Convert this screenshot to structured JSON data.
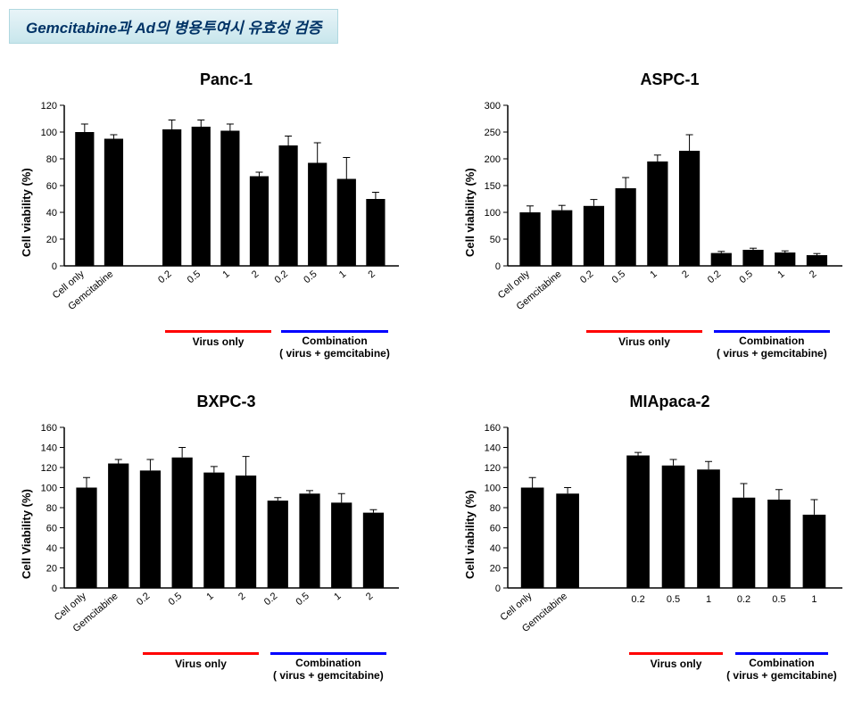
{
  "header": "Gemcitabine과 Ad의 병용투여시 유효성 검증",
  "ylabel_v": "Cell viability (%)",
  "ylabel_V": "Cell Viability (%)",
  "colors": {
    "bar": "#000000",
    "axis": "#000000",
    "virus_line": "#ff0000",
    "combo_line": "#0000ff",
    "bg": "#ffffff"
  },
  "font": {
    "title_pt": 18,
    "axis_pt": 13,
    "tick_pt": 11,
    "group_pt": 12
  },
  "group_label_virus": "Virus only",
  "group_label_combo": "Combination\n( virus + gemcitabine)",
  "panels": [
    {
      "id": "panc1",
      "title": "Panc-1",
      "ylabel_key": "ylabel_v",
      "ylim": [
        0,
        120
      ],
      "ytick_step": 20,
      "has_gap_after_two": true,
      "bars": [
        {
          "label": "Cell only",
          "value": 100,
          "err": 6,
          "rot": true
        },
        {
          "label": "Gemcitabine",
          "value": 95,
          "err": 3,
          "rot": true
        },
        {
          "label": "0.2",
          "value": 102,
          "err": 7,
          "rot": true,
          "group": "virus"
        },
        {
          "label": "0.5",
          "value": 104,
          "err": 5,
          "rot": true,
          "group": "virus"
        },
        {
          "label": "1",
          "value": 101,
          "err": 5,
          "rot": true,
          "group": "virus"
        },
        {
          "label": "2",
          "value": 67,
          "err": 3,
          "rot": true,
          "group": "virus"
        },
        {
          "label": "0.2",
          "value": 90,
          "err": 7,
          "rot": true,
          "group": "combo"
        },
        {
          "label": "0.5",
          "value": 77,
          "err": 15,
          "rot": true,
          "group": "combo"
        },
        {
          "label": "1",
          "value": 65,
          "err": 16,
          "rot": true,
          "group": "combo"
        },
        {
          "label": "2",
          "value": 50,
          "err": 5,
          "rot": true,
          "group": "combo"
        }
      ]
    },
    {
      "id": "aspc1",
      "title": "ASPC-1",
      "ylabel_key": "ylabel_v",
      "ylim": [
        0,
        300
      ],
      "ytick_step": 50,
      "has_gap_after_two": false,
      "bars": [
        {
          "label": "Cell only",
          "value": 100,
          "err": 12,
          "rot": true
        },
        {
          "label": "Gemcitabine",
          "value": 104,
          "err": 9,
          "rot": true
        },
        {
          "label": "0.2",
          "value": 112,
          "err": 12,
          "rot": true,
          "group": "virus"
        },
        {
          "label": "0.5",
          "value": 145,
          "err": 20,
          "rot": true,
          "group": "virus"
        },
        {
          "label": "1",
          "value": 195,
          "err": 12,
          "rot": true,
          "group": "virus"
        },
        {
          "label": "2",
          "value": 215,
          "err": 30,
          "rot": true,
          "group": "virus"
        },
        {
          "label": "0.2",
          "value": 24,
          "err": 3,
          "rot": true,
          "group": "combo"
        },
        {
          "label": "0.5",
          "value": 30,
          "err": 3,
          "rot": true,
          "group": "combo"
        },
        {
          "label": "1",
          "value": 25,
          "err": 3,
          "rot": true,
          "group": "combo"
        },
        {
          "label": "2",
          "value": 20,
          "err": 3,
          "rot": true,
          "group": "combo"
        }
      ]
    },
    {
      "id": "bxpc3",
      "title": "BXPC-3",
      "ylabel_key": "ylabel_V",
      "ylim": [
        0,
        160
      ],
      "ytick_step": 20,
      "has_gap_after_two": false,
      "bars": [
        {
          "label": "Cell only",
          "value": 100,
          "err": 10,
          "rot": true
        },
        {
          "label": "Gemcitabine",
          "value": 124,
          "err": 4,
          "rot": true
        },
        {
          "label": "0.2",
          "value": 117,
          "err": 11,
          "rot": true,
          "group": "virus"
        },
        {
          "label": "0.5",
          "value": 130,
          "err": 10,
          "rot": true,
          "group": "virus"
        },
        {
          "label": "1",
          "value": 115,
          "err": 6,
          "rot": true,
          "group": "virus"
        },
        {
          "label": "2",
          "value": 112,
          "err": 19,
          "rot": true,
          "group": "virus"
        },
        {
          "label": "0.2",
          "value": 87,
          "err": 3,
          "rot": true,
          "group": "combo"
        },
        {
          "label": "0.5",
          "value": 94,
          "err": 3,
          "rot": true,
          "group": "combo"
        },
        {
          "label": "1",
          "value": 85,
          "err": 9,
          "rot": true,
          "group": "combo"
        },
        {
          "label": "2",
          "value": 75,
          "err": 3,
          "rot": true,
          "group": "combo"
        }
      ]
    },
    {
      "id": "miapaca2",
      "title": "MIApaca-2",
      "ylabel_key": "ylabel_v",
      "ylim": [
        0,
        160
      ],
      "ytick_step": 20,
      "has_gap_after_two": true,
      "bars": [
        {
          "label": "Cell only",
          "value": 100,
          "err": 10,
          "rot": true
        },
        {
          "label": "Gemcitabine",
          "value": 94,
          "err": 6,
          "rot": true
        },
        {
          "label": "0.2",
          "value": 132,
          "err": 3,
          "rot": false,
          "group": "virus"
        },
        {
          "label": "0.5",
          "value": 122,
          "err": 6,
          "rot": false,
          "group": "virus"
        },
        {
          "label": "1",
          "value": 118,
          "err": 8,
          "rot": false,
          "group": "virus"
        },
        {
          "label": "0.2",
          "value": 90,
          "err": 14,
          "rot": false,
          "group": "combo"
        },
        {
          "label": "0.5",
          "value": 88,
          "err": 10,
          "rot": false,
          "group": "combo"
        },
        {
          "label": "1",
          "value": 73,
          "err": 15,
          "rot": false,
          "group": "combo"
        }
      ]
    }
  ]
}
